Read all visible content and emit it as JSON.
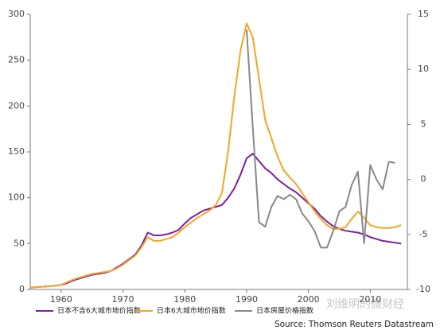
{
  "chart_data": {
    "type": "line",
    "x": [
      1955,
      1956,
      1957,
      1958,
      1959,
      1960,
      1961,
      1962,
      1963,
      1964,
      1965,
      1966,
      1967,
      1968,
      1969,
      1970,
      1971,
      1972,
      1973,
      1974,
      1975,
      1976,
      1977,
      1978,
      1979,
      1980,
      1981,
      1982,
      1983,
      1984,
      1985,
      1986,
      1987,
      1988,
      1989,
      1990,
      1991,
      1992,
      1993,
      1994,
      1995,
      1996,
      1997,
      1998,
      1999,
      2000,
      2001,
      2002,
      2003,
      2004,
      2005,
      2006,
      2007,
      2008,
      2009,
      2010,
      2011,
      2012,
      2013,
      2014,
      2015
    ],
    "series": [
      {
        "name": "日本不含6大城市地价指数",
        "color": "#7b1fa2",
        "values": [
          2,
          2.5,
          3,
          3.5,
          4,
          5,
          7,
          10,
          12,
          14,
          16,
          17,
          18,
          20,
          24,
          28,
          33,
          38,
          48,
          62,
          59,
          59,
          60,
          62,
          65,
          72,
          78,
          82,
          86,
          88,
          90,
          92,
          100,
          110,
          125,
          143,
          148,
          140,
          132,
          127,
          120,
          115,
          110,
          106,
          100,
          94,
          88,
          80,
          74,
          69,
          66,
          64,
          63,
          62,
          60,
          57,
          55,
          53,
          52,
          51,
          50
        ]
      },
      {
        "name": "日本6大城市地价指数",
        "color": "#f5a623",
        "values": [
          2,
          2.5,
          3,
          3.5,
          4,
          5,
          8,
          11,
          13,
          15,
          17,
          18,
          19,
          20,
          23,
          27,
          32,
          37,
          46,
          57,
          53,
          53,
          55,
          57,
          62,
          68,
          73,
          78,
          82,
          86,
          92,
          105,
          150,
          210,
          260,
          290,
          275,
          230,
          185,
          165,
          145,
          130,
          122,
          115,
          105,
          95,
          85,
          77,
          70,
          66,
          66,
          68,
          77,
          85,
          78,
          70,
          68,
          67,
          67,
          68,
          70
        ]
      },
      {
        "name": "日本房屋价格指数",
        "color": "#888888",
        "axis": "y2",
        "values": [
          null,
          null,
          null,
          null,
          null,
          null,
          null,
          null,
          null,
          null,
          null,
          null,
          null,
          null,
          null,
          null,
          null,
          null,
          null,
          null,
          null,
          null,
          null,
          null,
          null,
          null,
          null,
          null,
          null,
          null,
          null,
          null,
          null,
          null,
          null,
          13.6,
          4.7,
          -3.9,
          -4.3,
          -2.5,
          -1.5,
          -1.8,
          -1.4,
          -1.8,
          -3.1,
          -3.8,
          -4.7,
          -6.2,
          -6.2,
          -4.7,
          -2.9,
          -2.5,
          -0.5,
          0.7,
          -5.8,
          1.3,
          0.0,
          -0.9,
          1.6,
          1.5,
          null
        ]
      }
    ],
    "xlim": [
      1955,
      2016
    ],
    "xticks": [
      1960,
      1970,
      1980,
      1990,
      2000,
      2010
    ],
    "ylim": [
      0,
      300
    ],
    "yticks": [
      0,
      50,
      100,
      150,
      200,
      250,
      300
    ],
    "y2lim": [
      -10,
      15
    ],
    "y2ticks": [
      -10,
      -5,
      0,
      5,
      10,
      15
    ],
    "grid": false,
    "legend": "bottom",
    "source": "Source: Thomson Reuters Datastream",
    "watermark": "刘维明的微财经"
  }
}
